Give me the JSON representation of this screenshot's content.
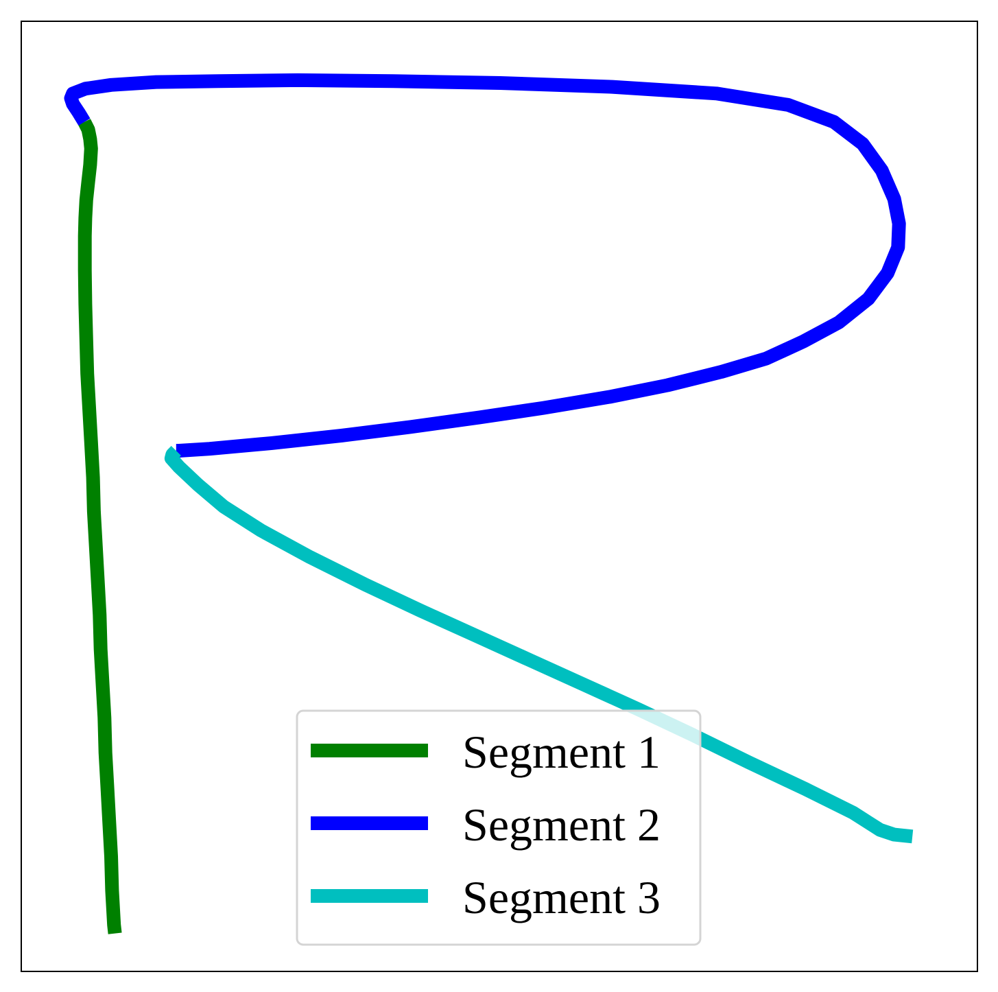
{
  "chart_data": {
    "type": "line",
    "title": "",
    "xlabel": "",
    "ylabel": "",
    "xlim": [
      0,
      1
    ],
    "ylim": [
      0,
      1
    ],
    "axis_ticks": "hidden",
    "grid": false,
    "legend_position": "lower center",
    "series": [
      {
        "name": "Segment 1",
        "color": "#008000",
        "points": [
          [
            0.066,
            0.894
          ],
          [
            0.07,
            0.886
          ],
          [
            0.072,
            0.876
          ],
          [
            0.073,
            0.866
          ],
          [
            0.072,
            0.849
          ],
          [
            0.07,
            0.831
          ],
          [
            0.068,
            0.812
          ],
          [
            0.067,
            0.793
          ],
          [
            0.0665,
            0.774
          ],
          [
            0.0665,
            0.738
          ],
          [
            0.067,
            0.702
          ],
          [
            0.068,
            0.665
          ],
          [
            0.069,
            0.629
          ],
          [
            0.071,
            0.593
          ],
          [
            0.073,
            0.557
          ],
          [
            0.075,
            0.52
          ],
          [
            0.076,
            0.484
          ],
          [
            0.078,
            0.448
          ],
          [
            0.08,
            0.412
          ],
          [
            0.082,
            0.375
          ],
          [
            0.083,
            0.339
          ],
          [
            0.085,
            0.303
          ],
          [
            0.087,
            0.267
          ],
          [
            0.088,
            0.23
          ],
          [
            0.09,
            0.194
          ],
          [
            0.092,
            0.158
          ],
          [
            0.094,
            0.121
          ],
          [
            0.095,
            0.085
          ],
          [
            0.097,
            0.049
          ],
          [
            0.098,
            0.04
          ]
        ]
      },
      {
        "name": "Segment 2",
        "color": "#0000ff",
        "points": [
          [
            0.066,
            0.894
          ],
          [
            0.06,
            0.904
          ],
          [
            0.054,
            0.913
          ],
          [
            0.052,
            0.919
          ],
          [
            0.054,
            0.924
          ],
          [
            0.067,
            0.929
          ],
          [
            0.094,
            0.933
          ],
          [
            0.141,
            0.936
          ],
          [
            0.206,
            0.937
          ],
          [
            0.289,
            0.938
          ],
          [
            0.389,
            0.937
          ],
          [
            0.501,
            0.935
          ],
          [
            0.618,
            0.931
          ],
          [
            0.727,
            0.924
          ],
          [
            0.802,
            0.912
          ],
          [
            0.85,
            0.894
          ],
          [
            0.88,
            0.871
          ],
          [
            0.9,
            0.843
          ],
          [
            0.913,
            0.813
          ],
          [
            0.918,
            0.787
          ],
          [
            0.917,
            0.762
          ],
          [
            0.906,
            0.735
          ],
          [
            0.886,
            0.708
          ],
          [
            0.855,
            0.683
          ],
          [
            0.818,
            0.663
          ],
          [
            0.779,
            0.645
          ],
          [
            0.732,
            0.631
          ],
          [
            0.676,
            0.617
          ],
          [
            0.617,
            0.605
          ],
          [
            0.546,
            0.593
          ],
          [
            0.479,
            0.583
          ],
          [
            0.407,
            0.573
          ],
          [
            0.335,
            0.564
          ],
          [
            0.262,
            0.556
          ],
          [
            0.197,
            0.55
          ],
          [
            0.165,
            0.548
          ],
          [
            0.162,
            0.548
          ]
        ]
      },
      {
        "name": "Segment 3",
        "color": "#00bfbf",
        "points": [
          [
            0.162,
            0.548
          ],
          [
            0.158,
            0.544
          ],
          [
            0.157,
            0.54
          ],
          [
            0.165,
            0.531
          ],
          [
            0.185,
            0.512
          ],
          [
            0.212,
            0.489
          ],
          [
            0.251,
            0.464
          ],
          [
            0.302,
            0.436
          ],
          [
            0.36,
            0.407
          ],
          [
            0.417,
            0.38
          ],
          [
            0.474,
            0.354
          ],
          [
            0.531,
            0.328
          ],
          [
            0.588,
            0.302
          ],
          [
            0.645,
            0.276
          ],
          [
            0.702,
            0.249
          ],
          [
            0.761,
            0.22
          ],
          [
            0.82,
            0.192
          ],
          [
            0.87,
            0.167
          ],
          [
            0.898,
            0.149
          ],
          [
            0.913,
            0.144
          ],
          [
            0.932,
            0.142
          ]
        ]
      }
    ]
  }
}
